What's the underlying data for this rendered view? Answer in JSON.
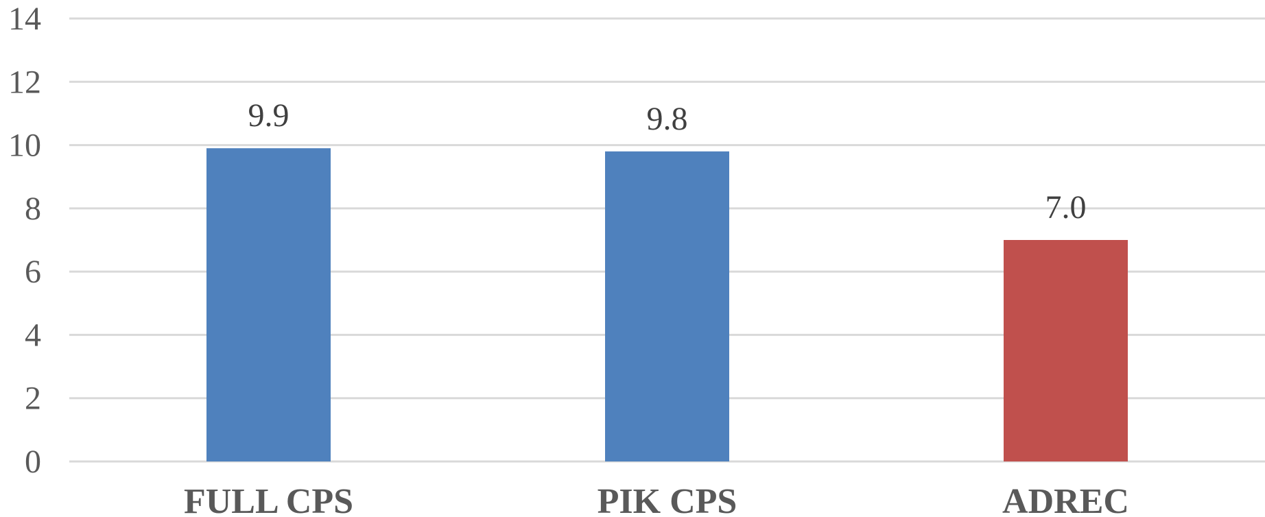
{
  "chart_data": {
    "type": "bar",
    "title": "",
    "xlabel": "",
    "ylabel": "",
    "categories": [
      "FULL CPS",
      "PIK CPS",
      "ADREC"
    ],
    "values": [
      9.9,
      9.8,
      7.0
    ],
    "data_labels": [
      "9.9",
      "9.8",
      "7.0"
    ],
    "bar_colors": [
      "#4f81bd",
      "#4f81bd",
      "#c0504d"
    ],
    "ylim": [
      0,
      14
    ],
    "yticks": [
      0,
      2,
      4,
      6,
      8,
      10,
      12,
      14
    ],
    "ytick_labels": [
      "0",
      "2",
      "4",
      "6",
      "8",
      "10",
      "12",
      "14"
    ],
    "grid": true,
    "legend": "none"
  }
}
